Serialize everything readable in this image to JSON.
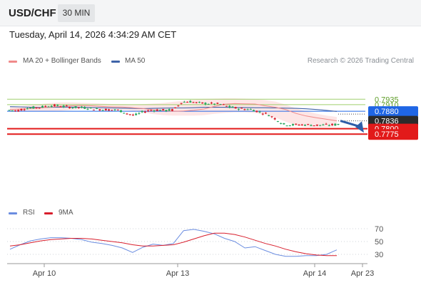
{
  "header": {
    "symbol": "USD/CHF",
    "timeframe": "30 MIN",
    "datetime": "Tuesday, April 14, 2026 4:34:29 AM CET"
  },
  "legend": {
    "ma20_label": "MA 20 + Bollinger Bands",
    "ma50_label": "MA 50",
    "credit": "Research © 2026 Trading Central",
    "rsi_label": "RSI",
    "rsi_ma_label": "9MA"
  },
  "colors": {
    "up": "#27a85f",
    "down": "#d81e2c",
    "ma20": "#f08a8a",
    "bands_fill": "#fde3e3",
    "ma50": "#3f63a8",
    "resistance": "#9fcf6e",
    "support": "#e21a1a",
    "pivot": "#1f66e5",
    "current": "#2b2b2b",
    "forecast_arrow": "#2f5ea8",
    "rsi": "#6b8de0",
    "rsi_ma": "#d81e2c"
  },
  "chart_data": [
    {
      "type": "candlestick",
      "title": "USD/CHF",
      "timeframe": "30 MIN",
      "x_tick_labels": [
        "Apr 10",
        "Apr 13",
        "Apr 14",
        "Apr 23"
      ],
      "ylim": [
        0.7765,
        0.795
      ],
      "levels": [
        {
          "value": 0.7935,
          "label": "0.7935",
          "kind": "resistance"
        },
        {
          "value": 0.791,
          "label": "0.7910",
          "kind": "resistance"
        },
        {
          "value": 0.788,
          "label": "0.7880",
          "kind": "pivot"
        },
        {
          "value": 0.7836,
          "label": "0.7836",
          "kind": "current"
        },
        {
          "value": 0.78,
          "label": "0.7800",
          "kind": "support"
        },
        {
          "value": 0.7775,
          "label": "0.7775",
          "kind": "support"
        }
      ],
      "forecast_arrow": {
        "from": 0.7836,
        "to": 0.7775
      },
      "series": [
        {
          "name": "MA 20 + Bollinger Bands",
          "values": [
            0.7888,
            0.789,
            0.7892,
            0.7895,
            0.7899,
            0.7903,
            0.7905,
            0.7906,
            0.7905,
            0.7902,
            0.79,
            0.7899,
            0.7896,
            0.7892,
            0.7887,
            0.7883,
            0.788,
            0.7881,
            0.7885,
            0.789,
            0.7902,
            0.7912,
            0.7915,
            0.7914,
            0.7913,
            0.7905,
            0.7898,
            0.7888,
            0.787,
            0.7858,
            0.785,
            0.7843,
            0.7836
          ]
        },
        {
          "name": "MA 50",
          "values": [
            0.7901,
            0.79,
            0.7898,
            0.7897,
            0.7898,
            0.7899,
            0.7899,
            0.7898,
            0.7897,
            0.7896,
            0.7895,
            0.7894,
            0.7893,
            0.7892,
            0.7893,
            0.7894,
            0.7895,
            0.7895,
            0.7896,
            0.7898,
            0.7898,
            0.7898,
            0.7897,
            0.7897,
            0.7896,
            0.7896,
            0.7895,
            0.7894,
            0.7893,
            0.7891,
            0.7888,
            0.7884,
            0.7879
          ]
        },
        {
          "name": "Bollinger Band upper",
          "values": [
            0.7898,
            0.7902,
            0.7908,
            0.7913,
            0.7918,
            0.7921,
            0.7921,
            0.7919,
            0.7917,
            0.7915,
            0.7913,
            0.7912,
            0.7911,
            0.7912,
            0.7915,
            0.7918,
            0.7923,
            0.7928,
            0.7933,
            0.7937,
            0.7938,
            0.7939,
            0.7939,
            0.7938,
            0.7936,
            0.7931,
            0.7924,
            0.791,
            0.7893,
            0.788,
            0.7869,
            0.786,
            0.7854
          ]
        },
        {
          "name": "Bollinger Band lower",
          "values": [
            0.7878,
            0.7879,
            0.788,
            0.788,
            0.788,
            0.7882,
            0.7886,
            0.7889,
            0.789,
            0.789,
            0.7888,
            0.7886,
            0.7882,
            0.7874,
            0.7867,
            0.7862,
            0.786,
            0.786,
            0.786,
            0.7862,
            0.7868,
            0.7872,
            0.7875,
            0.7875,
            0.7872,
            0.7865,
            0.7851,
            0.7832,
            0.7815,
            0.7808,
            0.7806,
            0.7807,
            0.7811
          ]
        }
      ]
    },
    {
      "type": "line",
      "title": "RSI",
      "y_tick_labels": [
        "70",
        "50",
        "30"
      ],
      "ylim": [
        15,
        85
      ],
      "series": [
        {
          "name": "RSI",
          "values": [
            38,
            45,
            51,
            54,
            56,
            56,
            55,
            53,
            49,
            47,
            44,
            40,
            33,
            41,
            46,
            44,
            47,
            67,
            69,
            66,
            62,
            55,
            50,
            40,
            42,
            36,
            30,
            27,
            27,
            28,
            28,
            30,
            37
          ]
        },
        {
          "name": "9MA",
          "values": [
            43,
            45,
            48,
            51,
            53,
            54,
            55,
            55,
            54,
            52,
            50,
            48,
            45,
            43,
            43,
            44,
            45,
            49,
            54,
            59,
            63,
            63,
            61,
            57,
            52,
            47,
            43,
            38,
            34,
            31,
            29,
            28,
            28
          ]
        }
      ]
    }
  ]
}
